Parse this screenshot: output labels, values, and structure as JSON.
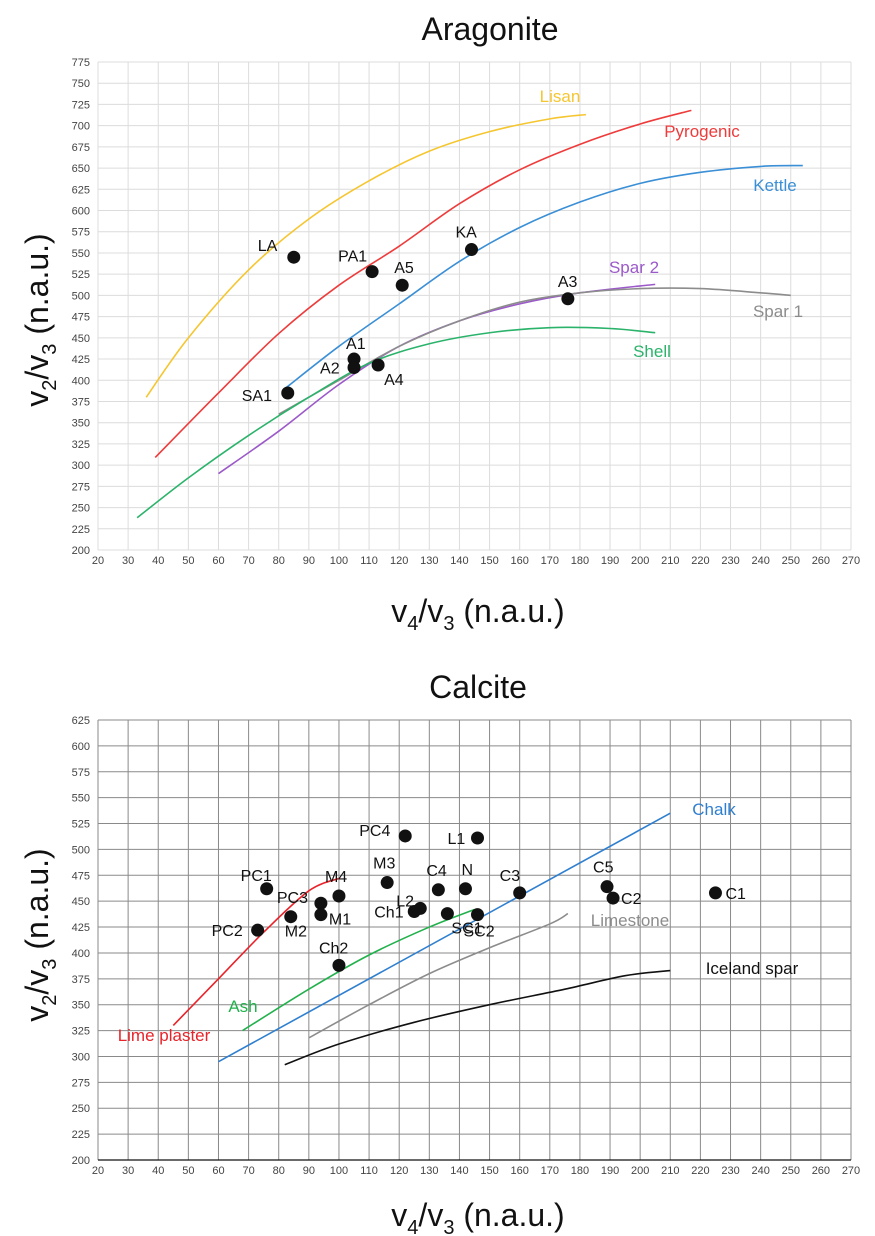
{
  "chart_data": [
    {
      "type": "line",
      "title": "Aragonite",
      "xlabel": {
        "main": "v",
        "sub1": "4",
        "sep": "/v",
        "sub2": "3",
        "unit": " (n.a.u.)"
      },
      "ylabel": {
        "main": "v",
        "sub1": "2",
        "sep": "/v",
        "sub2": "3",
        "unit": " (n.a.u.)"
      },
      "xlim": [
        20,
        270
      ],
      "ylim": [
        200,
        775
      ],
      "xstep": 10,
      "ystep": 25,
      "grid": true,
      "series": [
        {
          "name": "Lisan",
          "color": "#f5c630",
          "points": [
            [
              36,
              380
            ],
            [
              50,
              450
            ],
            [
              70,
              530
            ],
            [
              90,
              590
            ],
            [
              110,
              635
            ],
            [
              130,
              670
            ],
            [
              150,
              693
            ],
            [
              170,
              708
            ],
            [
              182,
              713
            ]
          ]
        },
        {
          "name": "Pyrogenic",
          "color": "#ee3b3b",
          "points": [
            [
              39,
              309
            ],
            [
              60,
              385
            ],
            [
              80,
              455
            ],
            [
              100,
              512
            ],
            [
              120,
              558
            ],
            [
              140,
              608
            ],
            [
              160,
              648
            ],
            [
              180,
              678
            ],
            [
              200,
              702
            ],
            [
              217,
              718
            ]
          ]
        },
        {
          "name": "Kettle",
          "color": "#3a8fd6",
          "points": [
            [
              82,
              390
            ],
            [
              100,
              440
            ],
            [
              120,
              490
            ],
            [
              140,
              540
            ],
            [
              160,
              580
            ],
            [
              180,
              610
            ],
            [
              200,
              632
            ],
            [
              220,
              645
            ],
            [
              240,
              652
            ],
            [
              254,
              653
            ]
          ]
        },
        {
          "name": "Spar 2",
          "color": "#9b59c9",
          "points": [
            [
              60,
              290
            ],
            [
              80,
              340
            ],
            [
              100,
              395
            ],
            [
              120,
              440
            ],
            [
              140,
              470
            ],
            [
              160,
              490
            ],
            [
              180,
              503
            ],
            [
              205,
              513
            ]
          ]
        },
        {
          "name": "Spar 1",
          "color": "#8c8c8c",
          "points": [
            [
              80,
              360
            ],
            [
              100,
              400
            ],
            [
              120,
              440
            ],
            [
              140,
              470
            ],
            [
              160,
              492
            ],
            [
              180,
              503
            ],
            [
              200,
              508
            ],
            [
              220,
              508
            ],
            [
              240,
              503
            ],
            [
              250,
              500
            ]
          ]
        },
        {
          "name": "Shell",
          "color": "#2bb36b",
          "points": [
            [
              33,
              238
            ],
            [
              50,
              285
            ],
            [
              70,
              335
            ],
            [
              90,
              380
            ],
            [
              110,
              420
            ],
            [
              130,
              443
            ],
            [
              150,
              456
            ],
            [
              170,
              462
            ],
            [
              190,
              461
            ],
            [
              205,
              456
            ]
          ]
        }
      ],
      "points": [
        {
          "label": "LA",
          "x": 85,
          "y": 545
        },
        {
          "label": "PA1",
          "x": 111,
          "y": 528
        },
        {
          "label": "A5",
          "x": 121,
          "y": 512
        },
        {
          "label": "KA",
          "x": 144,
          "y": 554
        },
        {
          "label": "A3",
          "x": 176,
          "y": 496
        },
        {
          "label": "A1",
          "x": 105,
          "y": 425
        },
        {
          "label": "A2",
          "x": 105,
          "y": 415
        },
        {
          "label": "A4",
          "x": 113,
          "y": 418
        },
        {
          "label": "SA1",
          "x": 83,
          "y": 385
        }
      ]
    },
    {
      "type": "line",
      "title": "Calcite",
      "xlabel": {
        "main": "v",
        "sub1": "4",
        "sep": "/v",
        "sub2": "3",
        "unit": " (n.a.u.)"
      },
      "ylabel": {
        "main": "v",
        "sub1": "2",
        "sep": "/v",
        "sub2": "3",
        "unit": " (n.a.u.)"
      },
      "xlim": [
        20,
        270
      ],
      "ylim": [
        200,
        625
      ],
      "xstep": 10,
      "ystep": 25,
      "grid": true,
      "series": [
        {
          "name": "Chalk",
          "color": "#2f7fd0",
          "points": [
            [
              60,
              295
            ],
            [
              210,
              535
            ]
          ]
        },
        {
          "name": "Lime plaster",
          "color": "#e8232a",
          "points": [
            [
              45,
              330
            ],
            [
              60,
              375
            ],
            [
              75,
              420
            ],
            [
              90,
              460
            ],
            [
              100,
              472
            ]
          ]
        },
        {
          "name": "Ash",
          "color": "#22b14c",
          "points": [
            [
              68,
              325
            ],
            [
              90,
              365
            ],
            [
              110,
              398
            ],
            [
              130,
              425
            ],
            [
              145,
              442
            ]
          ]
        },
        {
          "name": "Limestone",
          "color": "#8c8c8c",
          "points": [
            [
              90,
              318
            ],
            [
              110,
              350
            ],
            [
              130,
              380
            ],
            [
              150,
              405
            ],
            [
              170,
              428
            ],
            [
              176,
              438
            ]
          ]
        },
        {
          "name": "Iceland spar",
          "color": "#111111",
          "points": [
            [
              82,
              292
            ],
            [
              100,
              312
            ],
            [
              125,
              333
            ],
            [
              150,
              350
            ],
            [
              175,
              365
            ],
            [
              195,
              378
            ],
            [
              210,
              383
            ]
          ]
        }
      ],
      "points": [
        {
          "label": "PC4",
          "x": 122,
          "y": 513
        },
        {
          "label": "L1",
          "x": 146,
          "y": 511
        },
        {
          "label": "PC1",
          "x": 76,
          "y": 462
        },
        {
          "label": "PC3",
          "x": 94,
          "y": 448
        },
        {
          "label": "M4",
          "x": 100,
          "y": 455
        },
        {
          "label": "M3",
          "x": 116,
          "y": 468
        },
        {
          "label": "C4",
          "x": 133,
          "y": 461
        },
        {
          "label": "N",
          "x": 142,
          "y": 462
        },
        {
          "label": "C3",
          "x": 160,
          "y": 458
        },
        {
          "label": "C5",
          "x": 189,
          "y": 464
        },
        {
          "label": "C2",
          "x": 191,
          "y": 453
        },
        {
          "label": "C1",
          "x": 225,
          "y": 458
        },
        {
          "label": "PC2",
          "x": 73,
          "y": 422
        },
        {
          "label": "M2",
          "x": 84,
          "y": 435
        },
        {
          "label": "M1",
          "x": 94,
          "y": 437
        },
        {
          "label": "L2",
          "x": 127,
          "y": 443
        },
        {
          "label": "Ch1",
          "x": 125,
          "y": 440
        },
        {
          "label": "SC1",
          "x": 136,
          "y": 438
        },
        {
          "label": "SC2",
          "x": 146,
          "y": 437
        },
        {
          "label": "Ch2",
          "x": 100,
          "y": 388
        }
      ]
    }
  ]
}
